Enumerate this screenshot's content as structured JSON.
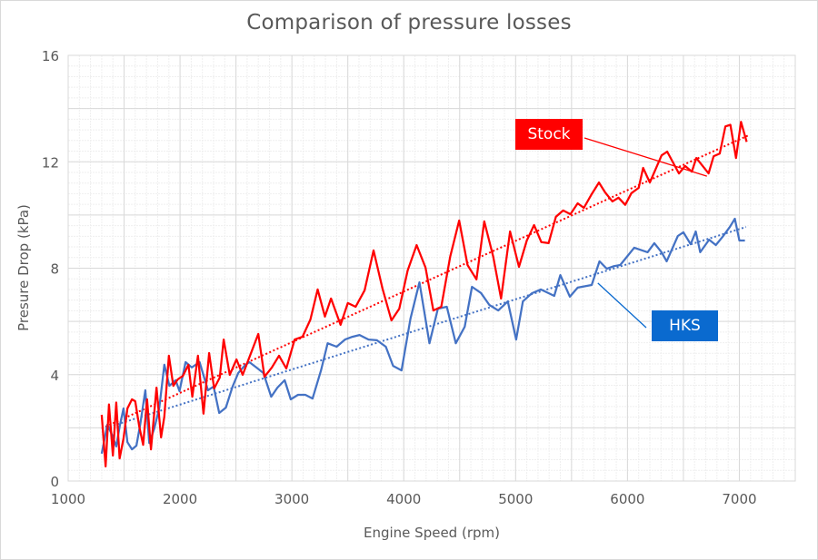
{
  "chart_data": {
    "type": "line",
    "title": "Comparison of pressure losses",
    "xlabel": "Engine Speed (rpm)",
    "ylabel": "Presure Drop (kPa)",
    "xlim": [
      1000,
      7500
    ],
    "ylim": [
      0,
      16
    ],
    "xticks": [
      1000,
      2000,
      3000,
      4000,
      5000,
      6000,
      7000
    ],
    "xtick_labels": [
      "1000",
      "2000",
      "3000",
      "4000",
      "5000",
      "6000",
      "7000"
    ],
    "yticks": [
      0,
      4,
      8,
      12,
      16
    ],
    "ytick_labels": [
      "0",
      "4",
      "8",
      "12",
      "16"
    ],
    "grid": true,
    "x_major_step": 500,
    "y_major_step": 2,
    "minor_grid": true,
    "legend": "none (callout labels)",
    "series": [
      {
        "name": "Stock",
        "color": "#FF0000",
        "label_color": "#FF0000",
        "trendline": {
          "type": "linear",
          "style": "dotted",
          "start": [
            1300,
            1.98
          ],
          "end": [
            7080,
            12.99
          ]
        },
        "points": [
          [
            1300,
            2.49
          ],
          [
            1335,
            0.55
          ],
          [
            1365,
            2.88
          ],
          [
            1400,
            0.96
          ],
          [
            1430,
            2.95
          ],
          [
            1460,
            0.85
          ],
          [
            1495,
            1.6
          ],
          [
            1530,
            2.73
          ],
          [
            1570,
            3.07
          ],
          [
            1600,
            3.0
          ],
          [
            1635,
            2.05
          ],
          [
            1670,
            1.36
          ],
          [
            1705,
            3.07
          ],
          [
            1740,
            1.19
          ],
          [
            1790,
            3.51
          ],
          [
            1830,
            1.64
          ],
          [
            1860,
            2.42
          ],
          [
            1900,
            4.71
          ],
          [
            1940,
            3.58
          ],
          [
            1980,
            3.82
          ],
          [
            2025,
            3.95
          ],
          [
            2075,
            4.37
          ],
          [
            2110,
            3.17
          ],
          [
            2160,
            4.71
          ],
          [
            2210,
            2.53
          ],
          [
            2260,
            4.81
          ],
          [
            2305,
            3.48
          ],
          [
            2355,
            3.89
          ],
          [
            2390,
            5.32
          ],
          [
            2445,
            3.99
          ],
          [
            2505,
            4.57
          ],
          [
            2560,
            3.99
          ],
          [
            2615,
            4.6
          ],
          [
            2700,
            5.53
          ],
          [
            2755,
            3.92
          ],
          [
            2820,
            4.26
          ],
          [
            2885,
            4.71
          ],
          [
            2950,
            4.23
          ],
          [
            3025,
            5.32
          ],
          [
            3095,
            5.42
          ],
          [
            3165,
            6.07
          ],
          [
            3230,
            7.2
          ],
          [
            3295,
            6.18
          ],
          [
            3350,
            6.86
          ],
          [
            3435,
            5.87
          ],
          [
            3500,
            6.69
          ],
          [
            3570,
            6.55
          ],
          [
            3650,
            7.17
          ],
          [
            3730,
            8.67
          ],
          [
            3810,
            7.24
          ],
          [
            3890,
            6.04
          ],
          [
            3960,
            6.48
          ],
          [
            4035,
            7.91
          ],
          [
            4115,
            8.87
          ],
          [
            4195,
            8.02
          ],
          [
            4265,
            6.41
          ],
          [
            4335,
            6.55
          ],
          [
            4415,
            8.43
          ],
          [
            4495,
            9.79
          ],
          [
            4570,
            8.12
          ],
          [
            4650,
            7.58
          ],
          [
            4720,
            9.76
          ],
          [
            4800,
            8.43
          ],
          [
            4870,
            6.86
          ],
          [
            4950,
            9.38
          ],
          [
            5030,
            8.05
          ],
          [
            5100,
            9.04
          ],
          [
            5165,
            9.62
          ],
          [
            5230,
            8.98
          ],
          [
            5295,
            8.94
          ],
          [
            5360,
            9.93
          ],
          [
            5425,
            10.17
          ],
          [
            5490,
            10.03
          ],
          [
            5555,
            10.44
          ],
          [
            5610,
            10.27
          ],
          [
            5675,
            10.75
          ],
          [
            5745,
            11.22
          ],
          [
            5800,
            10.85
          ],
          [
            5865,
            10.51
          ],
          [
            5920,
            10.65
          ],
          [
            5980,
            10.38
          ],
          [
            6035,
            10.82
          ],
          [
            6100,
            11.02
          ],
          [
            6140,
            11.77
          ],
          [
            6200,
            11.22
          ],
          [
            6305,
            12.24
          ],
          [
            6355,
            12.38
          ],
          [
            6460,
            11.56
          ],
          [
            6515,
            11.84
          ],
          [
            6575,
            11.63
          ],
          [
            6615,
            12.14
          ],
          [
            6725,
            11.56
          ],
          [
            6770,
            12.21
          ],
          [
            6825,
            12.31
          ],
          [
            6875,
            13.33
          ],
          [
            6920,
            13.39
          ],
          [
            6970,
            12.14
          ],
          [
            7015,
            13.5
          ],
          [
            7065,
            12.75
          ]
        ]
      },
      {
        "name": "HKS",
        "color": "#4472C4",
        "label_color": "#0A6ACF",
        "trendline": {
          "type": "linear",
          "style": "dotted",
          "start": [
            1300,
            1.95
          ],
          "end": [
            7060,
            9.55
          ]
        },
        "points": [
          [
            1300,
            1.03
          ],
          [
            1350,
            2.12
          ],
          [
            1395,
            1.71
          ],
          [
            1430,
            1.3
          ],
          [
            1460,
            2.04
          ],
          [
            1495,
            2.73
          ],
          [
            1530,
            1.46
          ],
          [
            1570,
            1.19
          ],
          [
            1610,
            1.33
          ],
          [
            1645,
            2.15
          ],
          [
            1690,
            3.41
          ],
          [
            1725,
            1.43
          ],
          [
            1770,
            1.98
          ],
          [
            1815,
            2.76
          ],
          [
            1860,
            4.37
          ],
          [
            1905,
            3.58
          ],
          [
            1960,
            3.79
          ],
          [
            1995,
            3.38
          ],
          [
            2050,
            4.47
          ],
          [
            2105,
            4.27
          ],
          [
            2175,
            4.47
          ],
          [
            2250,
            3.41
          ],
          [
            2300,
            3.55
          ],
          [
            2350,
            2.56
          ],
          [
            2410,
            2.76
          ],
          [
            2470,
            3.55
          ],
          [
            2520,
            4.06
          ],
          [
            2585,
            4.37
          ],
          [
            2620,
            4.47
          ],
          [
            2685,
            4.26
          ],
          [
            2745,
            4.06
          ],
          [
            2815,
            3.17
          ],
          [
            2870,
            3.51
          ],
          [
            2935,
            3.79
          ],
          [
            2990,
            3.07
          ],
          [
            3055,
            3.24
          ],
          [
            3120,
            3.24
          ],
          [
            3185,
            3.1
          ],
          [
            3260,
            4.16
          ],
          [
            3320,
            5.18
          ],
          [
            3400,
            5.05
          ],
          [
            3475,
            5.32
          ],
          [
            3540,
            5.42
          ],
          [
            3605,
            5.49
          ],
          [
            3685,
            5.32
          ],
          [
            3760,
            5.29
          ],
          [
            3840,
            5.05
          ],
          [
            3905,
            4.33
          ],
          [
            3980,
            4.16
          ],
          [
            4060,
            6.1
          ],
          [
            4140,
            7.47
          ],
          [
            4230,
            5.18
          ],
          [
            4305,
            6.48
          ],
          [
            4385,
            6.55
          ],
          [
            4465,
            5.18
          ],
          [
            4545,
            5.8
          ],
          [
            4610,
            7.3
          ],
          [
            4690,
            7.07
          ],
          [
            4765,
            6.62
          ],
          [
            4845,
            6.41
          ],
          [
            4930,
            6.75
          ],
          [
            5005,
            5.32
          ],
          [
            5065,
            6.75
          ],
          [
            5145,
            7.06
          ],
          [
            5225,
            7.2
          ],
          [
            5345,
            6.96
          ],
          [
            5400,
            7.74
          ],
          [
            5485,
            6.93
          ],
          [
            5555,
            7.27
          ],
          [
            5680,
            7.37
          ],
          [
            5750,
            8.26
          ],
          [
            5815,
            7.98
          ],
          [
            5880,
            8.08
          ],
          [
            5935,
            8.12
          ],
          [
            6060,
            8.77
          ],
          [
            6180,
            8.6
          ],
          [
            6240,
            8.94
          ],
          [
            6305,
            8.6
          ],
          [
            6350,
            8.26
          ],
          [
            6450,
            9.21
          ],
          [
            6500,
            9.35
          ],
          [
            6565,
            8.9
          ],
          [
            6610,
            9.38
          ],
          [
            6650,
            8.6
          ],
          [
            6730,
            9.07
          ],
          [
            6790,
            8.87
          ],
          [
            6850,
            9.18
          ],
          [
            6915,
            9.55
          ],
          [
            6960,
            9.86
          ],
          [
            7000,
            9.04
          ],
          [
            7050,
            9.04
          ]
        ]
      }
    ],
    "annotations": [
      {
        "text": "Stock",
        "series": "Stock",
        "points_to": [
          6710,
          11.46
        ]
      },
      {
        "text": "HKS",
        "series": "HKS",
        "points_to": [
          5735,
          7.44
        ]
      }
    ]
  }
}
